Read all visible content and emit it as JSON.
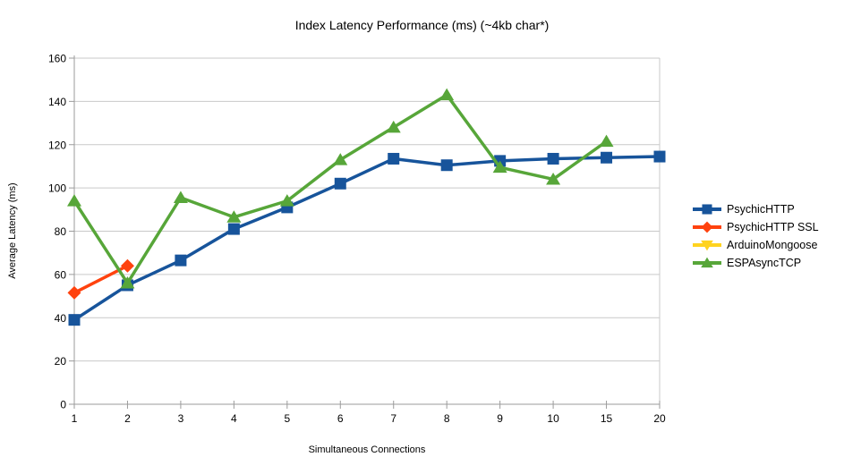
{
  "chart_data": {
    "type": "line",
    "title": "Index Latency Performance (ms) (~4kb char*)",
    "xlabel": "Simultaneous Connections",
    "ylabel": "Average Latency (ms)",
    "categories": [
      "1",
      "2",
      "3",
      "4",
      "5",
      "6",
      "7",
      "8",
      "9",
      "10",
      "15",
      "20"
    ],
    "ylim": [
      0,
      160
    ],
    "ytick_step": 20,
    "grid": true,
    "legend_position": "right",
    "series": [
      {
        "name": "PsychicHTTP",
        "color": "#17549B",
        "marker": "square",
        "values": [
          39,
          55,
          66.5,
          81,
          91,
          102,
          113.5,
          110.5,
          112.5,
          113.5,
          114,
          114.5
        ]
      },
      {
        "name": "PsychicHTTP SSL",
        "color": "#FF420E",
        "marker": "diamond",
        "values": [
          51.5,
          64,
          null,
          null,
          null,
          null,
          null,
          null,
          null,
          null,
          null,
          null
        ]
      },
      {
        "name": "ArduinoMongoose",
        "color": "#FFD320",
        "marker": "triangle-down",
        "values": [
          null,
          null,
          null,
          null,
          null,
          null,
          null,
          null,
          null,
          null,
          null,
          null
        ]
      },
      {
        "name": "ESPAsyncTCP",
        "color": "#57A639",
        "marker": "triangle-up",
        "values": [
          94,
          56,
          95.5,
          86.5,
          94,
          113,
          128,
          143,
          109.5,
          104,
          121.5,
          null
        ]
      }
    ],
    "colors": {
      "gridline": "#C9C9C9",
      "axis": "#9B9B9B",
      "text": "#000000",
      "background": "#FFFFFF"
    }
  }
}
